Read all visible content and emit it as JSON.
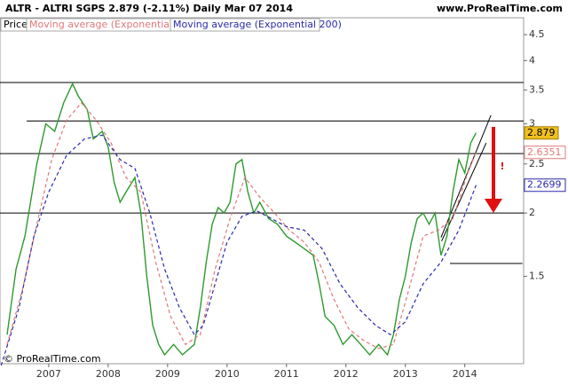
{
  "chart_data": {
    "type": "line",
    "title": "ALTR - ALTRI SGPS    2.879 (-2.11%)    Daily   Mar 07 2014",
    "source": "www.ProRealTime.com",
    "copyright": "© ProRealTime.com",
    "price_label": "Price",
    "log_scale": true,
    "xlim": [
      2006.18,
      2014.99
    ],
    "xticks": [
      2007,
      2008,
      2009,
      2010,
      2011,
      2012,
      2013,
      2014
    ],
    "ylim": [
      1.008,
      4.86
    ],
    "yticks": [
      1.5,
      2,
      2.5,
      3,
      3.5,
      4,
      4.5
    ],
    "series": [
      {
        "name": "Price",
        "color": "#2e9a2e",
        "x": [
          2006.3,
          2006.45,
          2006.6,
          2006.8,
          2006.95,
          2007.1,
          2007.25,
          2007.4,
          2007.5,
          2007.65,
          2007.75,
          2007.9,
          2008.0,
          2008.1,
          2008.2,
          2008.3,
          2008.45,
          2008.55,
          2008.65,
          2008.75,
          2008.85,
          2008.95,
          2009.1,
          2009.25,
          2009.45,
          2009.55,
          2009.65,
          2009.75,
          2009.85,
          2009.95,
          2010.05,
          2010.15,
          2010.25,
          2010.35,
          2010.45,
          2010.55,
          2010.7,
          2010.85,
          2011.0,
          2011.15,
          2011.3,
          2011.45,
          2011.55,
          2011.65,
          2011.8,
          2011.95,
          2012.1,
          2012.25,
          2012.4,
          2012.55,
          2012.7,
          2012.8,
          2012.9,
          2013.0,
          2013.1,
          2013.2,
          2013.3,
          2013.4,
          2013.5,
          2013.6,
          2013.7,
          2013.8,
          2013.9,
          2014.0,
          2014.1,
          2014.19
        ],
        "values": [
          1.15,
          1.55,
          1.8,
          2.5,
          3.0,
          2.9,
          3.3,
          3.6,
          3.4,
          3.2,
          2.8,
          2.9,
          2.7,
          2.3,
          2.1,
          2.2,
          2.35,
          2.0,
          1.5,
          1.2,
          1.1,
          1.05,
          1.1,
          1.05,
          1.1,
          1.3,
          1.6,
          1.9,
          2.05,
          2.0,
          2.1,
          2.5,
          2.55,
          2.2,
          2.0,
          2.1,
          1.95,
          1.9,
          1.8,
          1.75,
          1.7,
          1.65,
          1.45,
          1.25,
          1.2,
          1.1,
          1.15,
          1.1,
          1.05,
          1.1,
          1.05,
          1.15,
          1.35,
          1.5,
          1.75,
          1.95,
          2.0,
          1.9,
          2.0,
          1.65,
          1.8,
          2.2,
          2.55,
          2.4,
          2.75,
          2.879
        ]
      },
      {
        "name": "Moving average (Exponential 50)",
        "color": "#e07878",
        "dashed": true,
        "x": [
          2006.3,
          2006.55,
          2006.8,
          2007.05,
          2007.3,
          2007.55,
          2007.8,
          2008.05,
          2008.3,
          2008.55,
          2008.8,
          2009.05,
          2009.3,
          2009.55,
          2009.8,
          2010.05,
          2010.3,
          2010.55,
          2010.8,
          2011.05,
          2011.3,
          2011.55,
          2011.8,
          2012.05,
          2012.3,
          2012.55,
          2012.8,
          2013.05,
          2013.3,
          2013.55,
          2013.8,
          2014.05,
          2014.19
        ],
        "values": [
          1.1,
          1.4,
          1.9,
          2.55,
          3.05,
          3.3,
          3.05,
          2.75,
          2.35,
          2.2,
          1.6,
          1.25,
          1.1,
          1.15,
          1.55,
          1.95,
          2.35,
          2.15,
          2.0,
          1.85,
          1.75,
          1.6,
          1.35,
          1.18,
          1.12,
          1.08,
          1.1,
          1.4,
          1.8,
          1.85,
          1.95,
          2.4,
          2.6351
        ]
      },
      {
        "name": "Moving average (Exponential 200)",
        "color": "#2a2aa8",
        "dashed": true,
        "x": [
          2006.2,
          2006.5,
          2006.75,
          2007.0,
          2007.3,
          2007.6,
          2007.9,
          2008.2,
          2008.45,
          2008.7,
          2008.95,
          2009.2,
          2009.45,
          2009.6,
          2009.8,
          2010.0,
          2010.25,
          2010.5,
          2010.75,
          2011.0,
          2011.3,
          2011.6,
          2011.9,
          2012.2,
          2012.5,
          2012.75,
          2013.0,
          2013.3,
          2013.6,
          2013.9,
          2014.19
        ],
        "values": [
          1.0,
          1.3,
          1.8,
          2.2,
          2.6,
          2.8,
          2.85,
          2.55,
          2.45,
          2.0,
          1.55,
          1.3,
          1.15,
          1.2,
          1.45,
          1.75,
          1.97,
          2.02,
          1.95,
          1.88,
          1.85,
          1.7,
          1.45,
          1.3,
          1.2,
          1.15,
          1.22,
          1.45,
          1.6,
          1.85,
          2.2699
        ]
      }
    ],
    "level_lines": [
      {
        "x": [
          2006.18,
          2014.99
        ],
        "y": [
          3.62,
          3.62
        ]
      },
      {
        "x": [
          2006.63,
          2014.99
        ],
        "y": [
          3.04,
          3.04
        ]
      },
      {
        "x": [
          2006.18,
          2014.99
        ],
        "y": [
          2.62,
          2.62
        ]
      },
      {
        "x": [
          2006.18,
          2014.99
        ],
        "y": [
          2.0,
          2.0
        ]
      },
      {
        "x": [
          2013.75,
          2014.97
        ],
        "y": [
          1.59,
          1.59
        ]
      },
      {
        "x": [
          2013.6,
          2014.44
        ],
        "y": [
          1.79,
          3.12
        ]
      },
      {
        "x": [
          2013.61,
          2014.36
        ],
        "y": [
          1.76,
          2.75
        ]
      }
    ],
    "warning": "!"
  }
}
